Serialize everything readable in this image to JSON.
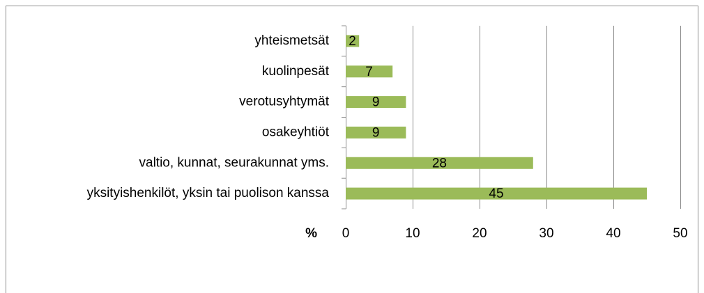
{
  "chart_data": {
    "type": "barh",
    "categories": [
      "yhteismetsät",
      "kuolinpesät",
      "verotusyhtymät",
      "osakeyhtiöt",
      "valtio, kunnat, seurakunnat yms.",
      "yksityishenkilöt, yksin tai puolison kanssa"
    ],
    "values": [
      2,
      7,
      9,
      9,
      28,
      45
    ],
    "color": "#9bbb59",
    "xlabel": "%",
    "xlim": [
      0,
      50
    ],
    "xticks": [
      0,
      10,
      20,
      30,
      40,
      50
    ],
    "grid": true
  }
}
